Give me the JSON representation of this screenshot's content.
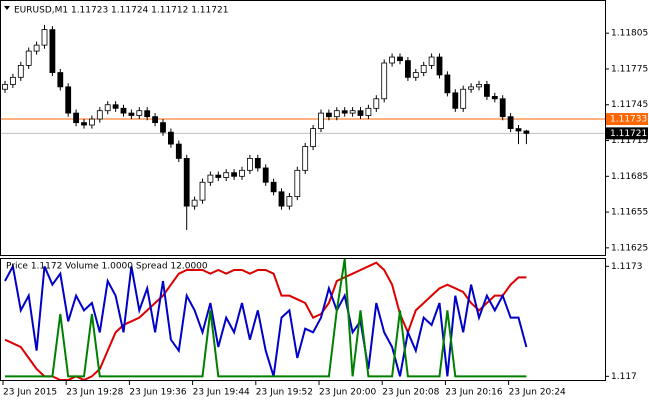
{
  "chart_data": [
    {
      "type": "candlestick",
      "title": "EURUSD,M1  1.11723 1.11724 1.11712 1.11721",
      "categories": [
        "23 Jun 2015",
        null,
        null,
        null,
        null,
        null,
        null,
        null,
        "23 Jun 19:28",
        null,
        null,
        null,
        null,
        null,
        null,
        null,
        "23 Jun 19:36",
        null,
        null,
        null,
        null,
        null,
        null,
        null,
        "23 Jun 19:44",
        null,
        null,
        null,
        null,
        null,
        null,
        null,
        "23 Jun 19:52",
        null,
        null,
        null,
        null,
        null,
        null,
        null,
        "23 Jun 20:00",
        null,
        null,
        null,
        null,
        null,
        null,
        null,
        "23 Jun 20:08",
        null,
        null,
        null,
        null,
        null,
        null,
        null,
        "23 Jun 20:16",
        null,
        null,
        null,
        null,
        null,
        null,
        null,
        "23 Jun 20:24",
        null,
        null
      ],
      "open": [
        1.11758,
        1.11762,
        1.11768,
        1.11778,
        1.1179,
        1.11795,
        1.11808,
        1.11772,
        1.1176,
        1.11738,
        1.1173,
        1.11728,
        1.11733,
        1.1174,
        1.11745,
        1.11742,
        1.11738,
        1.11736,
        1.1174,
        1.11735,
        1.1173,
        1.11722,
        1.11712,
        1.117,
        1.1166,
        1.11665,
        1.1168,
        1.11686,
        1.11684,
        1.11688,
        1.11685,
        1.1169,
        1.117,
        1.11692,
        1.1168,
        1.11672,
        1.1166,
        1.11668,
        1.1169,
        1.1171,
        1.11725,
        1.11738,
        1.11735,
        1.1174,
        1.11738,
        1.1174,
        1.11736,
        1.11742,
        1.1175,
        1.1178,
        1.11785,
        1.11782,
        1.11768,
        1.11772,
        1.11778,
        1.11785,
        1.1177,
        1.11755,
        1.11742,
        1.11758,
        1.1176,
        1.11762,
        1.11752,
        1.1175,
        1.11735,
        1.11725,
        1.11723
      ],
      "high": [
        1.11765,
        1.11771,
        1.11781,
        1.11793,
        1.11798,
        1.11812,
        1.11811,
        1.11775,
        1.11763,
        1.11741,
        1.11733,
        1.11736,
        1.11743,
        1.11748,
        1.11748,
        1.11745,
        1.11741,
        1.11743,
        1.11743,
        1.11738,
        1.11733,
        1.11725,
        1.11715,
        1.11703,
        1.11668,
        1.11683,
        1.11689,
        1.11689,
        1.11691,
        1.11691,
        1.11693,
        1.11703,
        1.11703,
        1.11695,
        1.11683,
        1.11675,
        1.11671,
        1.11693,
        1.11713,
        1.11728,
        1.11741,
        1.11741,
        1.11743,
        1.11743,
        1.11743,
        1.11743,
        1.11745,
        1.11753,
        1.11783,
        1.11788,
        1.11788,
        1.11785,
        1.11775,
        1.11781,
        1.11788,
        1.11788,
        1.11773,
        1.11758,
        1.11761,
        1.11763,
        1.11765,
        1.11765,
        1.11755,
        1.11753,
        1.11738,
        1.11728,
        1.11724
      ],
      "low": [
        1.11755,
        1.11759,
        1.11765,
        1.11775,
        1.11787,
        1.11792,
        1.11769,
        1.11757,
        1.11735,
        1.11727,
        1.11725,
        1.11725,
        1.1173,
        1.11737,
        1.11739,
        1.11735,
        1.11733,
        1.11733,
        1.11732,
        1.11727,
        1.11719,
        1.11709,
        1.11697,
        1.1164,
        1.11657,
        1.11662,
        1.11677,
        1.11681,
        1.11681,
        1.11682,
        1.11682,
        1.11687,
        1.11689,
        1.11677,
        1.11669,
        1.11657,
        1.11657,
        1.11665,
        1.11687,
        1.11707,
        1.11722,
        1.11732,
        1.11732,
        1.11735,
        1.11735,
        1.11733,
        1.11733,
        1.11739,
        1.11747,
        1.11777,
        1.11779,
        1.11765,
        1.11765,
        1.11769,
        1.11775,
        1.11767,
        1.11752,
        1.11739,
        1.11739,
        1.11755,
        1.11757,
        1.11749,
        1.11747,
        1.11732,
        1.11722,
        1.11712,
        1.11712
      ],
      "close": [
        1.11762,
        1.11768,
        1.11778,
        1.1179,
        1.11795,
        1.11808,
        1.11772,
        1.1176,
        1.11738,
        1.1173,
        1.11728,
        1.11733,
        1.1174,
        1.11745,
        1.11742,
        1.11738,
        1.11736,
        1.1174,
        1.11735,
        1.1173,
        1.11722,
        1.11712,
        1.117,
        1.1166,
        1.11665,
        1.1168,
        1.11686,
        1.11684,
        1.11688,
        1.11685,
        1.1169,
        1.117,
        1.11692,
        1.1168,
        1.11672,
        1.1166,
        1.11668,
        1.1169,
        1.1171,
        1.11725,
        1.11738,
        1.11735,
        1.1174,
        1.11738,
        1.1174,
        1.11736,
        1.11742,
        1.1175,
        1.1178,
        1.11785,
        1.11782,
        1.11768,
        1.11772,
        1.11778,
        1.11785,
        1.1177,
        1.11755,
        1.11742,
        1.11758,
        1.1176,
        1.11762,
        1.11752,
        1.1175,
        1.11735,
        1.11725,
        1.11723,
        1.11721
      ],
      "ylim": [
        1.11619,
        1.11832
      ],
      "yticks": [
        1.11805,
        1.11775,
        1.11745,
        1.11715,
        1.11685,
        1.11655,
        1.11625
      ],
      "price_lines": [
        {
          "value": 1.11733,
          "color": "#ff6600"
        },
        {
          "value": 1.11721,
          "color": "#c0c0c0"
        }
      ]
    },
    {
      "type": "line",
      "title": "Price 1.1172  Volume 1.0000  Spread 12.0000",
      "series": [
        {
          "color": "#dd0000",
          "values": [
            1.1171,
            1.11709,
            1.11708,
            1.11705,
            1.11702,
            1.117,
            1.117,
            1.11699,
            1.11699,
            1.117,
            1.11699,
            1.117,
            1.11702,
            1.11707,
            1.11712,
            1.11714,
            1.11715,
            1.11716,
            1.11718,
            1.1172,
            1.11722,
            1.11725,
            1.11728,
            1.11729,
            1.11729,
            1.11729,
            1.11728,
            1.11729,
            1.11728,
            1.11729,
            1.11729,
            1.11728,
            1.11729,
            1.11729,
            1.11728,
            1.11722,
            1.11722,
            1.11721,
            1.1172,
            1.11716,
            1.11717,
            1.1172,
            1.11726,
            1.11727,
            1.11728,
            1.11729,
            1.1173,
            1.11731,
            1.11729,
            1.11725,
            1.11717,
            1.11712,
            1.11718,
            1.1172,
            1.11722,
            1.11724,
            1.11725,
            1.11724,
            1.11723,
            1.1172,
            1.11718,
            1.1172,
            1.11722,
            1.11722,
            1.11725,
            1.11727,
            1.11727
          ]
        },
        {
          "color": "#0000c8",
          "values": [
            1.11726,
            1.1173,
            1.11718,
            1.11722,
            1.11707,
            1.1173,
            1.11725,
            1.11728,
            1.11715,
            1.11722,
            1.11718,
            1.1172,
            1.11712,
            1.11726,
            1.11722,
            1.11712,
            1.1173,
            1.11718,
            1.11724,
            1.11712,
            1.11726,
            1.1171,
            1.11707,
            1.11722,
            1.11718,
            1.11712,
            1.1172,
            1.11708,
            1.11716,
            1.11712,
            1.1172,
            1.1171,
            1.11718,
            1.11707,
            1.117,
            1.11716,
            1.11718,
            1.11705,
            1.11713,
            1.11712,
            1.11716,
            1.11724,
            1.11718,
            1.11722,
            1.11712,
            1.11715,
            1.11702,
            1.1172,
            1.11712,
            1.11708,
            1.117,
            1.11712,
            1.11707,
            1.11716,
            1.11714,
            1.1172,
            1.117,
            1.11722,
            1.11712,
            1.11725,
            1.11716,
            1.11722,
            1.11718,
            1.11722,
            1.11716,
            1.11716,
            1.11708
          ]
        },
        {
          "color": "#008000",
          "values": [
            1.117,
            1.117,
            1.117,
            1.117,
            1.117,
            1.117,
            1.117,
            1.11717,
            1.117,
            1.117,
            1.117,
            1.11717,
            1.117,
            1.117,
            1.117,
            1.117,
            1.117,
            1.117,
            1.117,
            1.117,
            1.117,
            1.117,
            1.117,
            1.117,
            1.117,
            1.117,
            1.11718,
            1.117,
            1.117,
            1.117,
            1.117,
            1.117,
            1.117,
            1.117,
            1.117,
            1.117,
            1.117,
            1.117,
            1.117,
            1.117,
            1.117,
            1.117,
            1.11718,
            1.11732,
            1.117,
            1.11718,
            1.117,
            1.117,
            1.117,
            1.117,
            1.11718,
            1.117,
            1.117,
            1.117,
            1.117,
            1.117,
            1.11718,
            1.117,
            1.117,
            1.117,
            1.117,
            1.117,
            1.117,
            1.117,
            1.117,
            1.117,
            1.117
          ]
        }
      ],
      "ylim": [
        1.11699,
        1.11732
      ],
      "yticks": [
        1.1173,
        1.117
      ]
    }
  ]
}
